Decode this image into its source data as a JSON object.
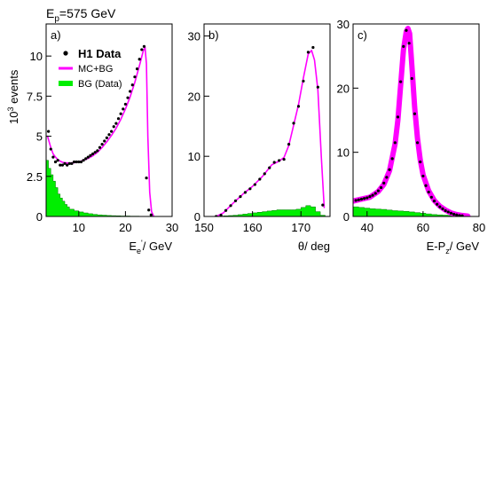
{
  "header": {
    "ep_prefix": "E",
    "ep_sub": "p",
    "ep_value": "=575 GeV",
    "ylabel_base": "10",
    "ylabel_exp": "3",
    "ylabel_text": " events"
  },
  "legend": {
    "data": "H1 Data",
    "mc": "MC+BG",
    "bg": "BG (Data)"
  },
  "colors": {
    "data": "#000000",
    "mc": "#ff00ff",
    "bg": "#00ee00",
    "bg_edge": "#007700"
  },
  "chart_data": [
    {
      "type": "line",
      "panel_label": "a)",
      "xlabel_main": "E",
      "xlabel_sub": "e",
      "xlabel_sup": "'",
      "xlabel_rest": "/ GeV",
      "xlim": [
        3,
        30
      ],
      "ylim": [
        0,
        12
      ],
      "xticks": [
        10,
        20,
        30
      ],
      "yticks": [
        0,
        2.5,
        5,
        7.5,
        10
      ],
      "ytick_labels": [
        "0",
        "2.5",
        "5",
        "7.5",
        "10"
      ],
      "series": [
        {
          "name": "H1 Data",
          "kind": "points",
          "x": [
            3.5,
            4.0,
            4.5,
            5.0,
            5.5,
            6.0,
            6.5,
            7.0,
            7.5,
            8.0,
            8.5,
            9.0,
            9.5,
            10.0,
            10.5,
            11.0,
            11.5,
            12.0,
            12.5,
            13.0,
            13.5,
            14.0,
            14.5,
            15.0,
            15.5,
            16.0,
            16.5,
            17.0,
            17.5,
            18.0,
            18.5,
            19.0,
            19.5,
            20.0,
            20.5,
            21.0,
            21.5,
            22.0,
            22.5,
            23.0,
            23.5,
            24.0,
            24.5,
            25.0,
            25.5
          ],
          "y": [
            5.3,
            4.2,
            3.7,
            3.4,
            3.5,
            3.2,
            3.2,
            3.3,
            3.2,
            3.3,
            3.3,
            3.4,
            3.4,
            3.4,
            3.4,
            3.5,
            3.6,
            3.7,
            3.8,
            3.9,
            4.0,
            4.1,
            4.3,
            4.5,
            4.7,
            4.9,
            5.1,
            5.3,
            5.6,
            5.8,
            6.1,
            6.4,
            6.7,
            7.0,
            7.4,
            7.8,
            8.2,
            8.7,
            9.2,
            9.8,
            10.4,
            10.6,
            2.4,
            0.4,
            0.1
          ]
        },
        {
          "name": "MC+BG",
          "kind": "line",
          "x": [
            3.3,
            3.6,
            4.0,
            4.5,
            5.0,
            5.5,
            6.0,
            6.5,
            7.0,
            8.0,
            9.0,
            10.0,
            11.0,
            12.0,
            13.0,
            14.0,
            15.0,
            16.0,
            17.0,
            18.0,
            19.0,
            20.0,
            21.0,
            22.0,
            23.0,
            23.8,
            24.2,
            24.5,
            24.8,
            25.2,
            25.6,
            26.0
          ],
          "y": [
            5.0,
            4.7,
            4.3,
            3.9,
            3.7,
            3.55,
            3.45,
            3.38,
            3.35,
            3.33,
            3.35,
            3.4,
            3.5,
            3.62,
            3.78,
            4.0,
            4.3,
            4.65,
            5.05,
            5.5,
            6.05,
            6.7,
            7.45,
            8.35,
            9.4,
            10.3,
            10.55,
            9.5,
            5.0,
            1.5,
            0.3,
            0.05
          ]
        },
        {
          "name": "BG (Data)",
          "kind": "hist",
          "edges": [
            3,
            3.5,
            4,
            4.5,
            5,
            5.5,
            6,
            6.5,
            7,
            7.5,
            8,
            9,
            10,
            11,
            12,
            13,
            14,
            15,
            16,
            17,
            18,
            19,
            20,
            21,
            22,
            23,
            24,
            25
          ],
          "values": [
            3.5,
            3.0,
            2.6,
            2.2,
            1.8,
            1.4,
            1.15,
            0.95,
            0.75,
            0.6,
            0.45,
            0.35,
            0.28,
            0.22,
            0.17,
            0.13,
            0.1,
            0.08,
            0.06,
            0.05,
            0.04,
            0.03,
            0.03,
            0.02,
            0.02,
            0.01,
            0.01
          ]
        }
      ]
    },
    {
      "type": "line",
      "panel_label": "b)",
      "xlabel_main": "θ/ deg",
      "xlim": [
        150,
        176
      ],
      "ylim": [
        0,
        32
      ],
      "xticks": [
        150,
        160,
        170
      ],
      "yticks": [
        0,
        10,
        20,
        30
      ],
      "ytick_labels": [
        "0",
        "10",
        "20",
        "30"
      ],
      "series": [
        {
          "name": "H1 Data",
          "kind": "points",
          "x": [
            152.5,
            153.5,
            154.5,
            155.5,
            156.5,
            157.5,
            158.5,
            159.5,
            160.5,
            161.5,
            162.5,
            163.5,
            164.5,
            165.5,
            166.5,
            167.5,
            168.5,
            169.5,
            170.5,
            171.5,
            172.5,
            173.5,
            174.5
          ],
          "y": [
            0.0,
            0.2,
            1.0,
            1.8,
            2.6,
            3.3,
            4.0,
            4.6,
            5.3,
            6.2,
            7.1,
            8.1,
            9.0,
            9.3,
            9.5,
            12.0,
            15.5,
            18.3,
            22.5,
            27.3,
            28.1,
            21.5,
            1.9
          ]
        },
        {
          "name": "MC+BG",
          "kind": "line",
          "x": [
            152.5,
            154.0,
            156.0,
            158.0,
            160.0,
            162.0,
            164.0,
            165.5,
            166.5,
            167.5,
            168.5,
            169.5,
            170.5,
            171.5,
            172.2,
            172.8,
            173.5,
            174.2,
            174.8
          ],
          "y": [
            0.0,
            0.6,
            2.2,
            3.7,
            5.0,
            6.6,
            8.6,
            9.2,
            9.8,
            11.8,
            15.2,
            18.6,
            23.0,
            27.0,
            27.6,
            26.0,
            21.0,
            10.0,
            1.5
          ]
        },
        {
          "name": "BG (Data)",
          "kind": "hist",
          "edges": [
            152,
            153,
            154,
            155,
            156,
            157,
            158,
            159,
            160,
            161,
            162,
            163,
            164,
            165,
            166,
            167,
            168,
            169,
            170,
            171,
            172,
            173,
            174,
            175
          ],
          "values": [
            0.02,
            0.05,
            0.1,
            0.15,
            0.2,
            0.3,
            0.4,
            0.5,
            0.6,
            0.7,
            0.8,
            0.9,
            1.0,
            1.1,
            1.1,
            1.1,
            1.1,
            1.2,
            1.5,
            1.8,
            1.6,
            0.8,
            0.2
          ]
        }
      ]
    },
    {
      "type": "line",
      "panel_label": "c)",
      "xlabel_main": "E-P",
      "xlabel_sub": "z",
      "xlabel_rest": "/ GeV",
      "xlim": [
        35,
        80
      ],
      "ylim": [
        0,
        30
      ],
      "xticks": [
        40,
        60,
        80
      ],
      "yticks": [
        0,
        10,
        20,
        30
      ],
      "ytick_labels": [
        "0",
        "10",
        "20",
        "30"
      ],
      "series": [
        {
          "name": "H1 Data",
          "kind": "points",
          "x": [
            36,
            37,
            38,
            39,
            40,
            41,
            42,
            43,
            44,
            45,
            46,
            47,
            48,
            49,
            50,
            51,
            52,
            53,
            54,
            55,
            56,
            57,
            58,
            59,
            60,
            61,
            62,
            63,
            64,
            65,
            66,
            67,
            68,
            69,
            70,
            71,
            72,
            73,
            74
          ],
          "y": [
            2.5,
            2.6,
            2.7,
            2.8,
            2.9,
            3.1,
            3.3,
            3.6,
            4.0,
            4.5,
            5.2,
            6.1,
            7.3,
            9.0,
            11.5,
            15.5,
            21.0,
            26.5,
            29.0,
            27.0,
            21.5,
            16.0,
            11.5,
            8.5,
            6.3,
            4.8,
            3.8,
            3.0,
            2.4,
            1.9,
            1.5,
            1.2,
            0.9,
            0.7,
            0.5,
            0.35,
            0.25,
            0.15,
            0.1
          ]
        },
        {
          "name": "MC+BG",
          "kind": "band",
          "x": [
            35,
            38,
            41,
            44,
            46,
            48,
            50,
            51,
            52,
            53,
            54,
            54.6,
            55.2,
            56,
            57,
            58,
            59,
            60,
            62,
            64,
            66,
            68,
            70,
            72,
            74,
            76
          ],
          "y": [
            2.4,
            2.7,
            3.0,
            3.9,
            5.0,
            7.1,
            11.3,
            15.0,
            20.5,
            26.0,
            28.8,
            29.3,
            28.5,
            23.5,
            17.0,
            12.2,
            8.8,
            6.5,
            4.0,
            2.5,
            1.6,
            1.0,
            0.55,
            0.3,
            0.15,
            0.05
          ]
        },
        {
          "name": "BG (Data)",
          "kind": "hist",
          "edges": [
            35,
            37,
            39,
            41,
            43,
            45,
            47,
            49,
            51,
            53,
            55,
            57,
            59,
            61,
            63,
            65,
            67,
            69,
            71,
            73,
            75,
            77,
            79
          ],
          "values": [
            1.5,
            1.4,
            1.3,
            1.2,
            1.15,
            1.1,
            1.0,
            0.9,
            0.85,
            0.8,
            0.7,
            0.6,
            0.5,
            0.4,
            0.3,
            0.25,
            0.2,
            0.15,
            0.1,
            0.08,
            0.05,
            0.03
          ]
        }
      ]
    }
  ]
}
